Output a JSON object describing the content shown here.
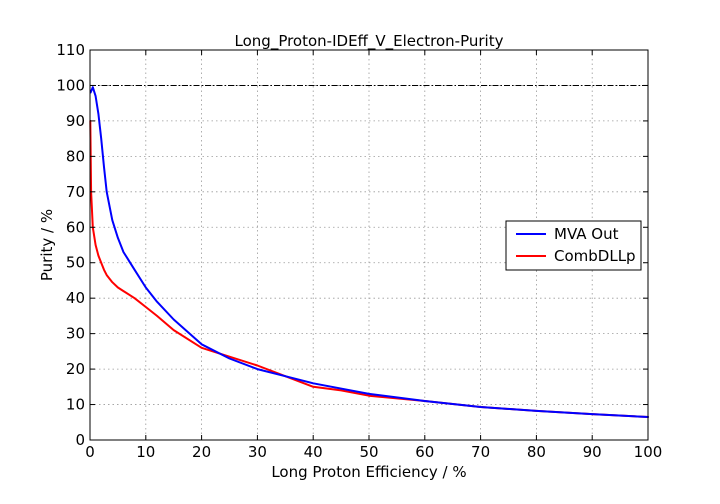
{
  "chart_data": {
    "type": "line",
    "title": "Long_Proton-IDEff_V_Electron-Purity",
    "xlabel": "Long Proton Efficiency / %",
    "ylabel": "Purity / %",
    "xlim": [
      0,
      100
    ],
    "ylim": [
      0,
      110
    ],
    "xticks": [
      0,
      10,
      20,
      30,
      40,
      50,
      60,
      70,
      80,
      90,
      100
    ],
    "yticks": [
      0,
      10,
      20,
      30,
      40,
      50,
      60,
      70,
      80,
      90,
      100,
      110
    ],
    "grid": true,
    "legend_position": "right",
    "reference_line": {
      "y": 100,
      "style": "dash-dot",
      "color": "#000000"
    },
    "series": [
      {
        "name": "MVA Out",
        "color": "#0000ff",
        "x": [
          0.1,
          0.5,
          1,
          1.5,
          2,
          2.5,
          3,
          4,
          5,
          6,
          8,
          10,
          12,
          15,
          20,
          25,
          30,
          35,
          40,
          50,
          60,
          70,
          80,
          90,
          100
        ],
        "y": [
          98,
          99.5,
          97,
          92,
          85,
          77,
          70,
          62,
          57,
          53,
          48,
          43,
          39,
          34,
          27,
          23,
          20,
          18,
          16,
          13,
          11,
          9.3,
          8.2,
          7.3,
          6.5
        ]
      },
      {
        "name": "CombDLLp",
        "color": "#ff0000",
        "x": [
          0.05,
          0.2,
          0.5,
          1,
          1.5,
          2,
          2.5,
          3,
          4,
          5,
          6,
          8,
          10,
          12,
          15,
          20,
          25,
          30,
          35,
          40,
          45,
          50,
          60,
          70,
          80,
          90,
          100
        ],
        "y": [
          90,
          70,
          60,
          55,
          52,
          50,
          48,
          46.5,
          44.5,
          43,
          42,
          40,
          37.5,
          35,
          31,
          26,
          23.5,
          21,
          18,
          15,
          14,
          12.5,
          11,
          9.3,
          8.2,
          7.3,
          6.5
        ]
      }
    ]
  }
}
